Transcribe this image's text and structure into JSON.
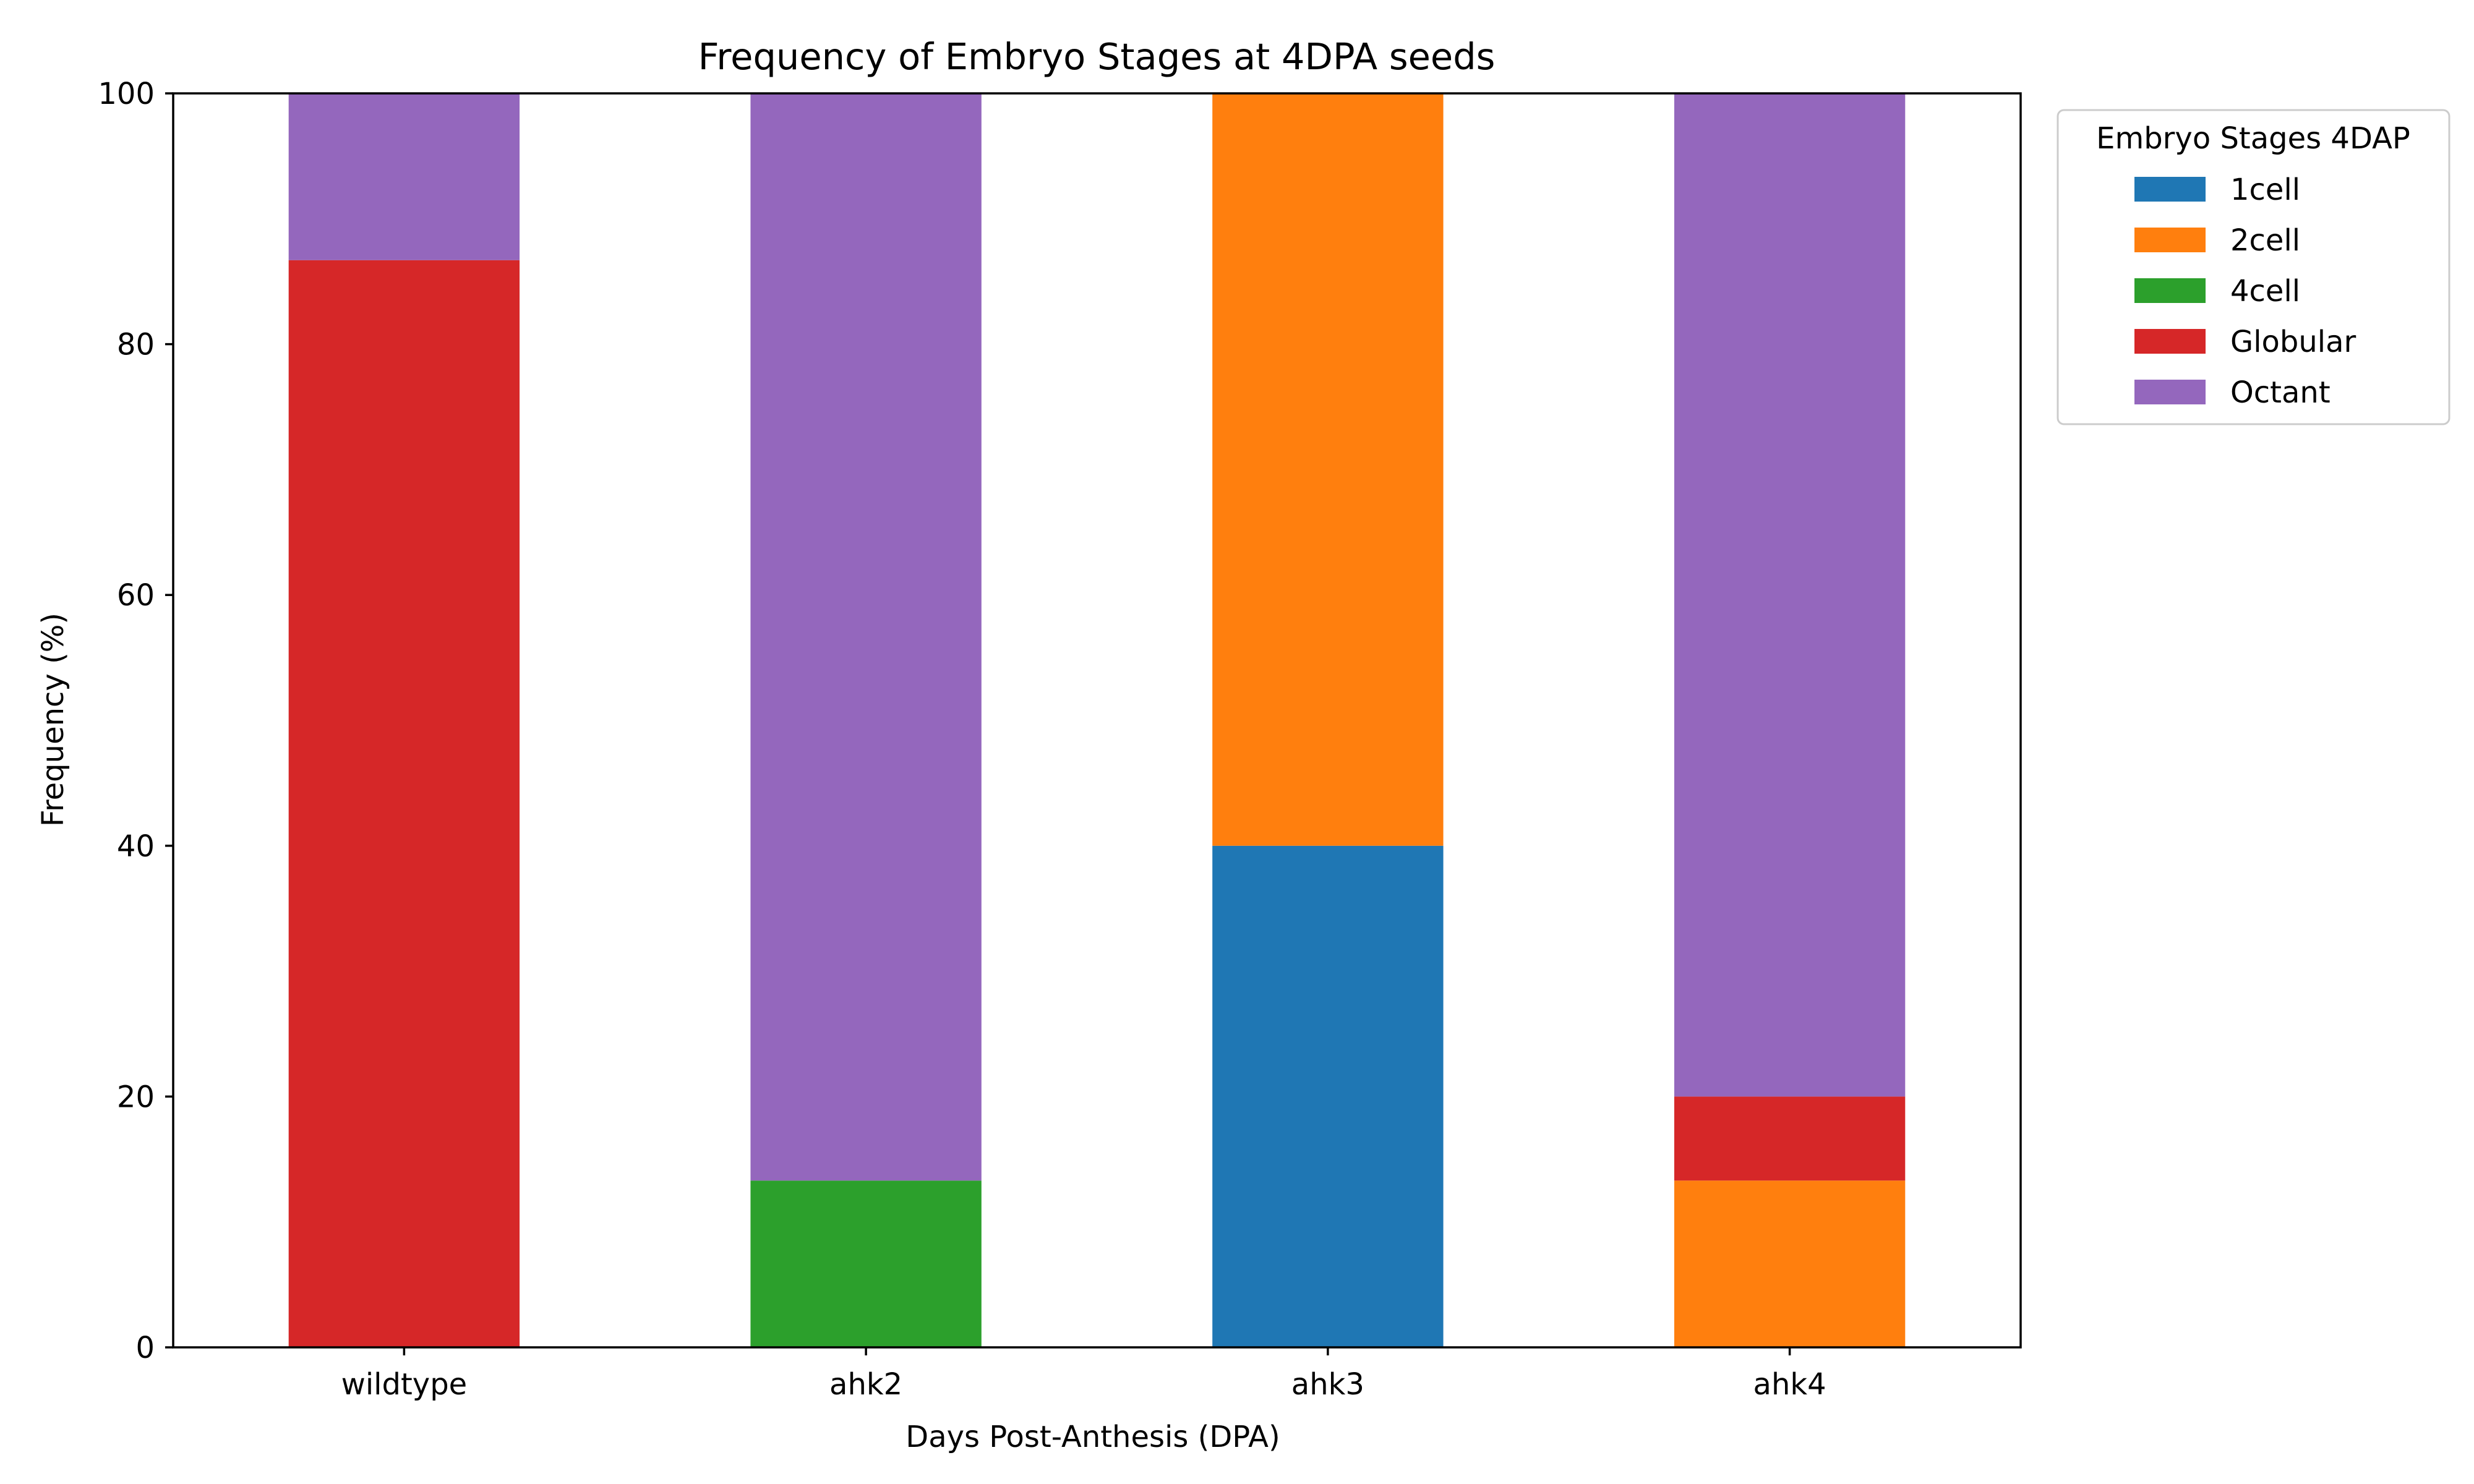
{
  "chart_data": {
    "type": "bar",
    "stacked": true,
    "title": "Frequency of Embryo Stages at 4DPA seeds",
    "xlabel": "Days Post-Anthesis (DPA)",
    "ylabel": "Frequency (%)",
    "categories": [
      "wildtype",
      "ahk2",
      "ahk3",
      "ahk4"
    ],
    "ylim": [
      0,
      100
    ],
    "yticks": [
      "0",
      "20",
      "40",
      "60",
      "80",
      "100"
    ],
    "grid": false,
    "legend": {
      "title": "Embryo Stages 4DAP",
      "position": "outside-right"
    },
    "series": [
      {
        "name": "1cell",
        "color": "#1f77b4",
        "values": [
          0,
          0,
          40,
          0
        ]
      },
      {
        "name": "2cell",
        "color": "#ff7f0e",
        "values": [
          0,
          0,
          60,
          13.3
        ]
      },
      {
        "name": "4cell",
        "color": "#2ca02c",
        "values": [
          0,
          13.3,
          0,
          0
        ]
      },
      {
        "name": "Globular",
        "color": "#d62728",
        "values": [
          86.7,
          0,
          0,
          6.7
        ]
      },
      {
        "name": "Octant",
        "color": "#9467bd",
        "values": [
          13.3,
          86.7,
          0,
          80
        ]
      }
    ]
  }
}
